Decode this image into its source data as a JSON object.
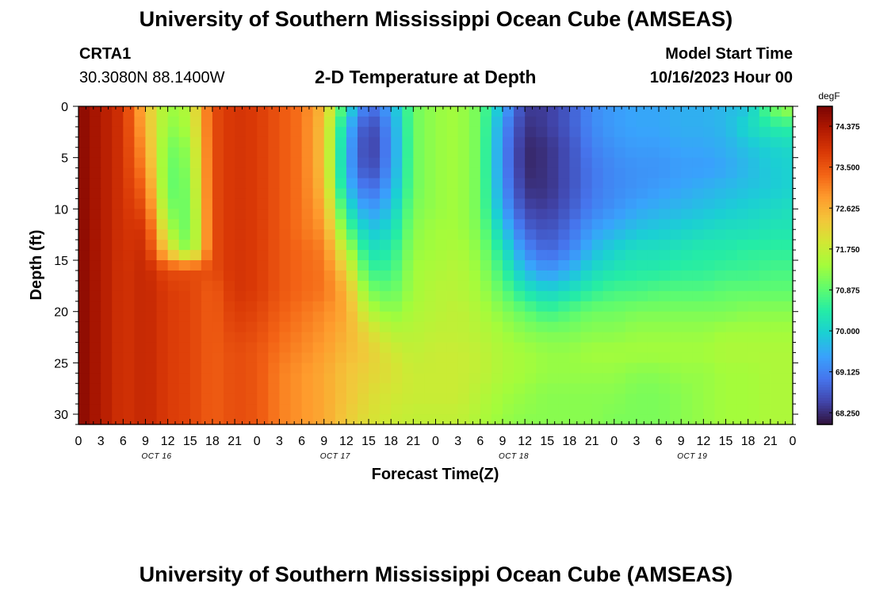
{
  "header": {
    "title": "University of Southern Mississippi Ocean Cube (AMSEAS)",
    "station_id": "CRTA1",
    "station_coords": "30.3080N  88.1400W",
    "plot_title": "2-D Temperature at Depth",
    "model_start_label": "Model Start Time",
    "model_start_value": "10/16/2023 Hour 00"
  },
  "footer": {
    "title": "University of Southern Mississippi Ocean Cube (AMSEAS)"
  },
  "chart_data": {
    "type": "heatmap",
    "title": "2-D Temperature at Depth",
    "xlabel": "Forecast Time(Z)",
    "ylabel": "Depth (ft)",
    "colorbar_unit": "degF",
    "x_ticks": [
      "0",
      "3",
      "6",
      "9",
      "12",
      "15",
      "18",
      "21",
      "0",
      "3",
      "6",
      "9",
      "12",
      "15",
      "18",
      "21",
      "0",
      "3",
      "6",
      "9",
      "12",
      "15",
      "18",
      "21",
      "0",
      "3",
      "6",
      "9",
      "12",
      "15",
      "18",
      "21",
      "0"
    ],
    "x_hours": [
      0,
      3,
      6,
      9,
      12,
      15,
      18,
      21,
      24,
      27,
      30,
      33,
      36,
      39,
      42,
      45,
      48,
      51,
      54,
      57,
      60,
      63,
      66,
      69,
      72,
      75,
      78,
      81,
      84,
      87,
      90,
      93,
      96
    ],
    "date_labels": [
      {
        "text": "OCT 16",
        "hour": 10.5
      },
      {
        "text": "OCT 17",
        "hour": 34.5
      },
      {
        "text": "OCT 18",
        "hour": 58.5
      },
      {
        "text": "OCT 19",
        "hour": 82.5
      }
    ],
    "y_ticks": [
      "0",
      "5",
      "10",
      "15",
      "20",
      "25",
      "30"
    ],
    "y_values": [
      0,
      5,
      10,
      15,
      20,
      25,
      30
    ],
    "xlim": [
      0,
      96
    ],
    "ylim": [
      31,
      0
    ],
    "color_ticks": [
      "74.375",
      "73.500",
      "72.625",
      "71.750",
      "70.875",
      "70.000",
      "69.125",
      "68.250"
    ],
    "color_values": [
      74.375,
      73.5,
      72.625,
      71.75,
      70.875,
      70.0,
      69.125,
      68.25
    ],
    "color_range": [
      68.0,
      74.8
    ],
    "colormap": [
      "#30123b",
      "#4145ab",
      "#4675ed",
      "#39a2fc",
      "#1bcfd4",
      "#24eca6",
      "#61fc6c",
      "#a4fc3b",
      "#d1e834",
      "#f3c63a",
      "#fe9b2d",
      "#f36315",
      "#d93806",
      "#b11901",
      "#7a0403"
    ],
    "depth_levels_ft": [
      0,
      2,
      4,
      6,
      8,
      10,
      12,
      14,
      16,
      18,
      20,
      22,
      24,
      26,
      28,
      31
    ],
    "hours": [
      0,
      3,
      6,
      9,
      12,
      15,
      18,
      21,
      24,
      27,
      30,
      33,
      36,
      39,
      42,
      45,
      48,
      51,
      54,
      57,
      60,
      63,
      66,
      69,
      72,
      75,
      78,
      81,
      84,
      87,
      90,
      93,
      96
    ],
    "temperature_degF": [
      [
        74.7,
        74.3,
        73.9,
        72.5,
        71.3,
        71.6,
        73.6,
        73.9,
        73.8,
        73.5,
        73.2,
        72.5,
        70.3,
        68.8,
        69.5,
        71.0,
        71.3,
        71.4,
        71.0,
        69.6,
        68.4,
        68.4,
        68.7,
        69.2,
        69.4,
        69.5,
        69.5,
        69.6,
        69.6,
        69.7,
        69.8,
        71.0,
        71.5
      ],
      [
        74.7,
        74.3,
        73.9,
        72.6,
        71.2,
        71.5,
        73.6,
        73.9,
        73.8,
        73.5,
        73.2,
        72.4,
        69.8,
        68.4,
        69.3,
        71.0,
        71.3,
        71.4,
        71.0,
        69.3,
        68.3,
        68.4,
        68.7,
        69.2,
        69.4,
        69.5,
        69.5,
        69.6,
        69.6,
        69.7,
        70.1,
        70.4,
        70.5
      ],
      [
        74.7,
        74.3,
        73.9,
        72.8,
        71.0,
        71.3,
        73.6,
        73.9,
        73.8,
        73.5,
        73.2,
        72.4,
        69.6,
        68.3,
        69.2,
        71.0,
        71.3,
        71.4,
        71.0,
        69.2,
        68.2,
        68.3,
        68.6,
        69.1,
        69.3,
        69.4,
        69.4,
        69.5,
        69.5,
        69.6,
        69.8,
        70.0,
        70.1
      ],
      [
        74.7,
        74.3,
        73.9,
        73.0,
        70.9,
        71.2,
        73.6,
        73.9,
        73.8,
        73.5,
        73.2,
        72.4,
        69.6,
        68.4,
        69.3,
        71.0,
        71.3,
        71.4,
        71.0,
        69.2,
        68.2,
        68.3,
        68.6,
        69.0,
        69.2,
        69.3,
        69.3,
        69.4,
        69.4,
        69.5,
        69.7,
        69.9,
        70.0
      ],
      [
        74.7,
        74.3,
        73.9,
        73.3,
        70.9,
        71.1,
        73.6,
        73.9,
        73.8,
        73.5,
        73.2,
        72.5,
        69.8,
        68.8,
        69.5,
        71.0,
        71.3,
        71.4,
        71.0,
        69.3,
        68.3,
        68.3,
        68.6,
        69.0,
        69.2,
        69.3,
        69.4,
        69.5,
        69.6,
        69.7,
        69.8,
        69.9,
        70.0
      ],
      [
        74.7,
        74.3,
        73.9,
        73.6,
        71.1,
        71.0,
        73.6,
        73.9,
        73.8,
        73.5,
        73.2,
        72.7,
        70.3,
        69.3,
        69.8,
        71.1,
        71.3,
        71.4,
        71.0,
        69.5,
        68.5,
        68.4,
        68.7,
        69.1,
        69.3,
        69.5,
        69.6,
        69.7,
        69.8,
        69.9,
        70.0,
        70.1,
        70.2
      ],
      [
        74.7,
        74.3,
        73.9,
        73.9,
        71.5,
        70.9,
        73.6,
        73.9,
        73.8,
        73.5,
        73.2,
        72.9,
        70.9,
        69.8,
        70.1,
        71.2,
        71.4,
        71.4,
        71.1,
        69.9,
        68.8,
        68.6,
        68.9,
        69.4,
        69.6,
        69.8,
        69.9,
        70.0,
        70.1,
        70.2,
        70.2,
        70.3,
        70.3
      ],
      [
        74.7,
        74.3,
        73.9,
        74.0,
        72.2,
        71.0,
        73.6,
        73.9,
        73.8,
        73.5,
        73.3,
        73.1,
        71.6,
        70.2,
        70.4,
        71.3,
        71.4,
        71.5,
        71.2,
        70.3,
        69.2,
        68.8,
        69.1,
        69.7,
        70.0,
        70.2,
        70.2,
        70.3,
        70.4,
        70.4,
        70.5,
        70.5,
        70.5
      ],
      [
        74.7,
        74.3,
        73.9,
        74.1,
        73.6,
        73.6,
        73.6,
        73.9,
        73.8,
        73.5,
        73.3,
        73.2,
        72.2,
        70.6,
        70.6,
        71.4,
        71.5,
        71.6,
        71.3,
        70.6,
        69.7,
        69.3,
        69.6,
        70.1,
        70.3,
        70.4,
        70.4,
        70.5,
        70.5,
        70.6,
        70.6,
        70.7,
        70.7
      ],
      [
        74.7,
        74.3,
        73.9,
        74.1,
        73.8,
        73.7,
        73.4,
        73.9,
        73.8,
        73.5,
        73.3,
        73.2,
        72.6,
        71.1,
        70.9,
        71.4,
        71.6,
        71.6,
        71.4,
        70.9,
        70.3,
        70.0,
        70.2,
        70.5,
        70.7,
        70.7,
        70.8,
        70.8,
        70.8,
        70.9,
        70.9,
        70.9,
        70.9
      ],
      [
        74.7,
        74.3,
        73.9,
        74.1,
        73.8,
        73.7,
        73.4,
        73.8,
        73.7,
        73.4,
        73.2,
        73.0,
        72.7,
        71.6,
        71.2,
        71.5,
        71.6,
        71.7,
        71.5,
        71.2,
        70.9,
        70.6,
        70.8,
        71.0,
        71.0,
        71.1,
        71.1,
        71.1,
        71.1,
        71.1,
        71.2,
        71.2,
        71.2
      ],
      [
        74.7,
        74.3,
        73.9,
        74.1,
        73.8,
        73.7,
        73.4,
        73.7,
        73.6,
        73.3,
        73.1,
        72.9,
        72.6,
        72.1,
        71.6,
        71.6,
        71.7,
        71.7,
        71.6,
        71.4,
        71.2,
        71.1,
        71.1,
        71.2,
        71.2,
        71.3,
        71.3,
        71.3,
        71.3,
        71.4,
        71.4,
        71.4,
        71.4
      ],
      [
        74.7,
        74.3,
        73.9,
        74.1,
        73.8,
        73.7,
        73.4,
        73.6,
        73.5,
        73.2,
        73.0,
        72.8,
        72.5,
        72.3,
        71.9,
        71.7,
        71.8,
        71.8,
        71.7,
        71.5,
        71.4,
        71.3,
        71.3,
        71.4,
        71.4,
        71.4,
        71.4,
        71.4,
        71.4,
        71.5,
        71.5,
        71.5,
        71.5
      ],
      [
        74.7,
        74.3,
        73.9,
        74.1,
        73.8,
        73.7,
        73.4,
        73.6,
        73.5,
        73.1,
        72.9,
        72.7,
        72.4,
        72.2,
        72.0,
        71.8,
        71.8,
        71.8,
        71.7,
        71.5,
        71.4,
        71.3,
        71.3,
        71.3,
        71.3,
        71.2,
        71.2,
        71.3,
        71.3,
        71.4,
        71.4,
        71.5,
        71.5
      ],
      [
        74.7,
        74.3,
        73.9,
        74.1,
        73.8,
        73.7,
        73.4,
        73.6,
        73.5,
        73.1,
        72.9,
        72.7,
        72.4,
        72.1,
        71.9,
        71.8,
        71.8,
        71.8,
        71.6,
        71.4,
        71.3,
        71.2,
        71.2,
        71.2,
        71.2,
        71.1,
        71.1,
        71.2,
        71.3,
        71.4,
        71.4,
        71.5,
        71.5
      ],
      [
        74.7,
        74.3,
        73.9,
        74.1,
        73.8,
        73.7,
        73.4,
        73.6,
        73.5,
        73.1,
        72.9,
        72.7,
        72.3,
        72.0,
        71.8,
        71.7,
        71.7,
        71.7,
        71.5,
        71.3,
        71.2,
        71.2,
        71.2,
        71.2,
        71.1,
        71.1,
        71.1,
        71.2,
        71.3,
        71.4,
        71.4,
        71.5,
        71.5
      ]
    ]
  }
}
